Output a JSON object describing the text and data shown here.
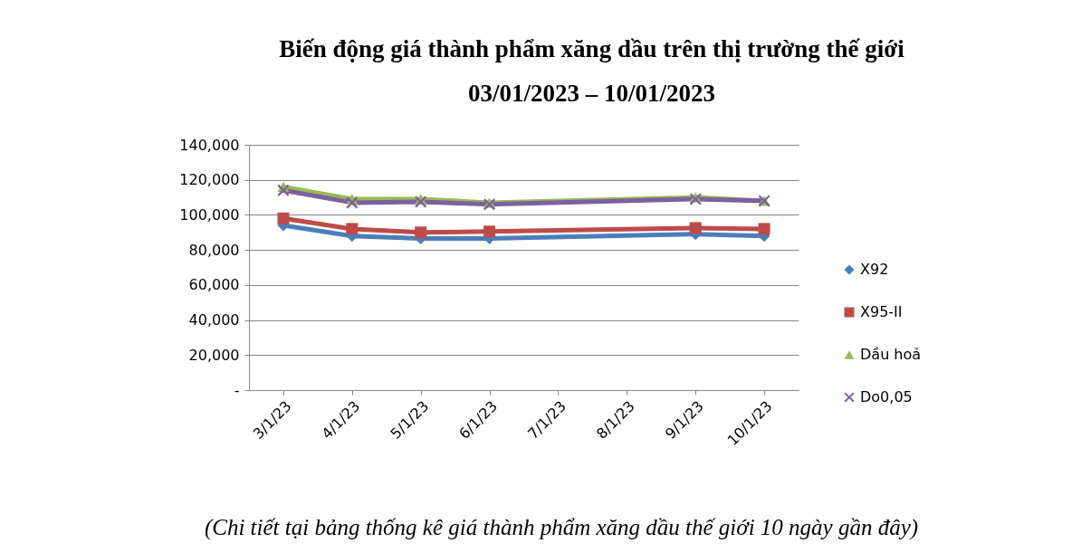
{
  "chart_data": {
    "type": "line",
    "title": "Biến động giá thành phẩm xăng dầu trên thị trường thế giới",
    "subtitle": "03/01/2023 – 10/01/2023",
    "categories": [
      "3/1/23",
      "4/1/23",
      "5/1/23",
      "6/1/23",
      "7/1/23",
      "8/1/23",
      "9/1/23",
      "10/1/23"
    ],
    "series": [
      {
        "name": "X92",
        "color": "#4a7ebb",
        "marker": "diamond",
        "values": [
          94000,
          88000,
          86500,
          86500,
          null,
          null,
          89000,
          88000
        ]
      },
      {
        "name": "X95-II",
        "color": "#be4b48",
        "marker": "square",
        "values": [
          98000,
          92000,
          90000,
          90500,
          null,
          null,
          92500,
          92000
        ]
      },
      {
        "name": "Dầu hoả",
        "color": "#98b954",
        "marker": "triangle",
        "values": [
          116000,
          109000,
          109000,
          107000,
          null,
          null,
          110000,
          108000
        ]
      },
      {
        "name": "Do0,05",
        "color": "#7d60a0",
        "marker": "cross",
        "values": [
          114000,
          107000,
          107500,
          106000,
          null,
          null,
          109000,
          108000
        ]
      }
    ],
    "ylim": [
      0,
      140000
    ],
    "yticks": [
      {
        "value": 0,
        "label": "-"
      },
      {
        "value": 20000,
        "label": "20,000"
      },
      {
        "value": 40000,
        "label": "40,000"
      },
      {
        "value": 60000,
        "label": "60,000"
      },
      {
        "value": 80000,
        "label": "80,000"
      },
      {
        "value": 100000,
        "label": "100,000"
      },
      {
        "value": 120000,
        "label": "120,000"
      },
      {
        "value": 140000,
        "label": "140,000"
      }
    ],
    "grid": "y",
    "legend": "right",
    "annotations": [
      "(Chi tiết tại bảng thống kê giá thành phẩm xăng dầu thế giới 10 ngày gần đây)"
    ]
  }
}
